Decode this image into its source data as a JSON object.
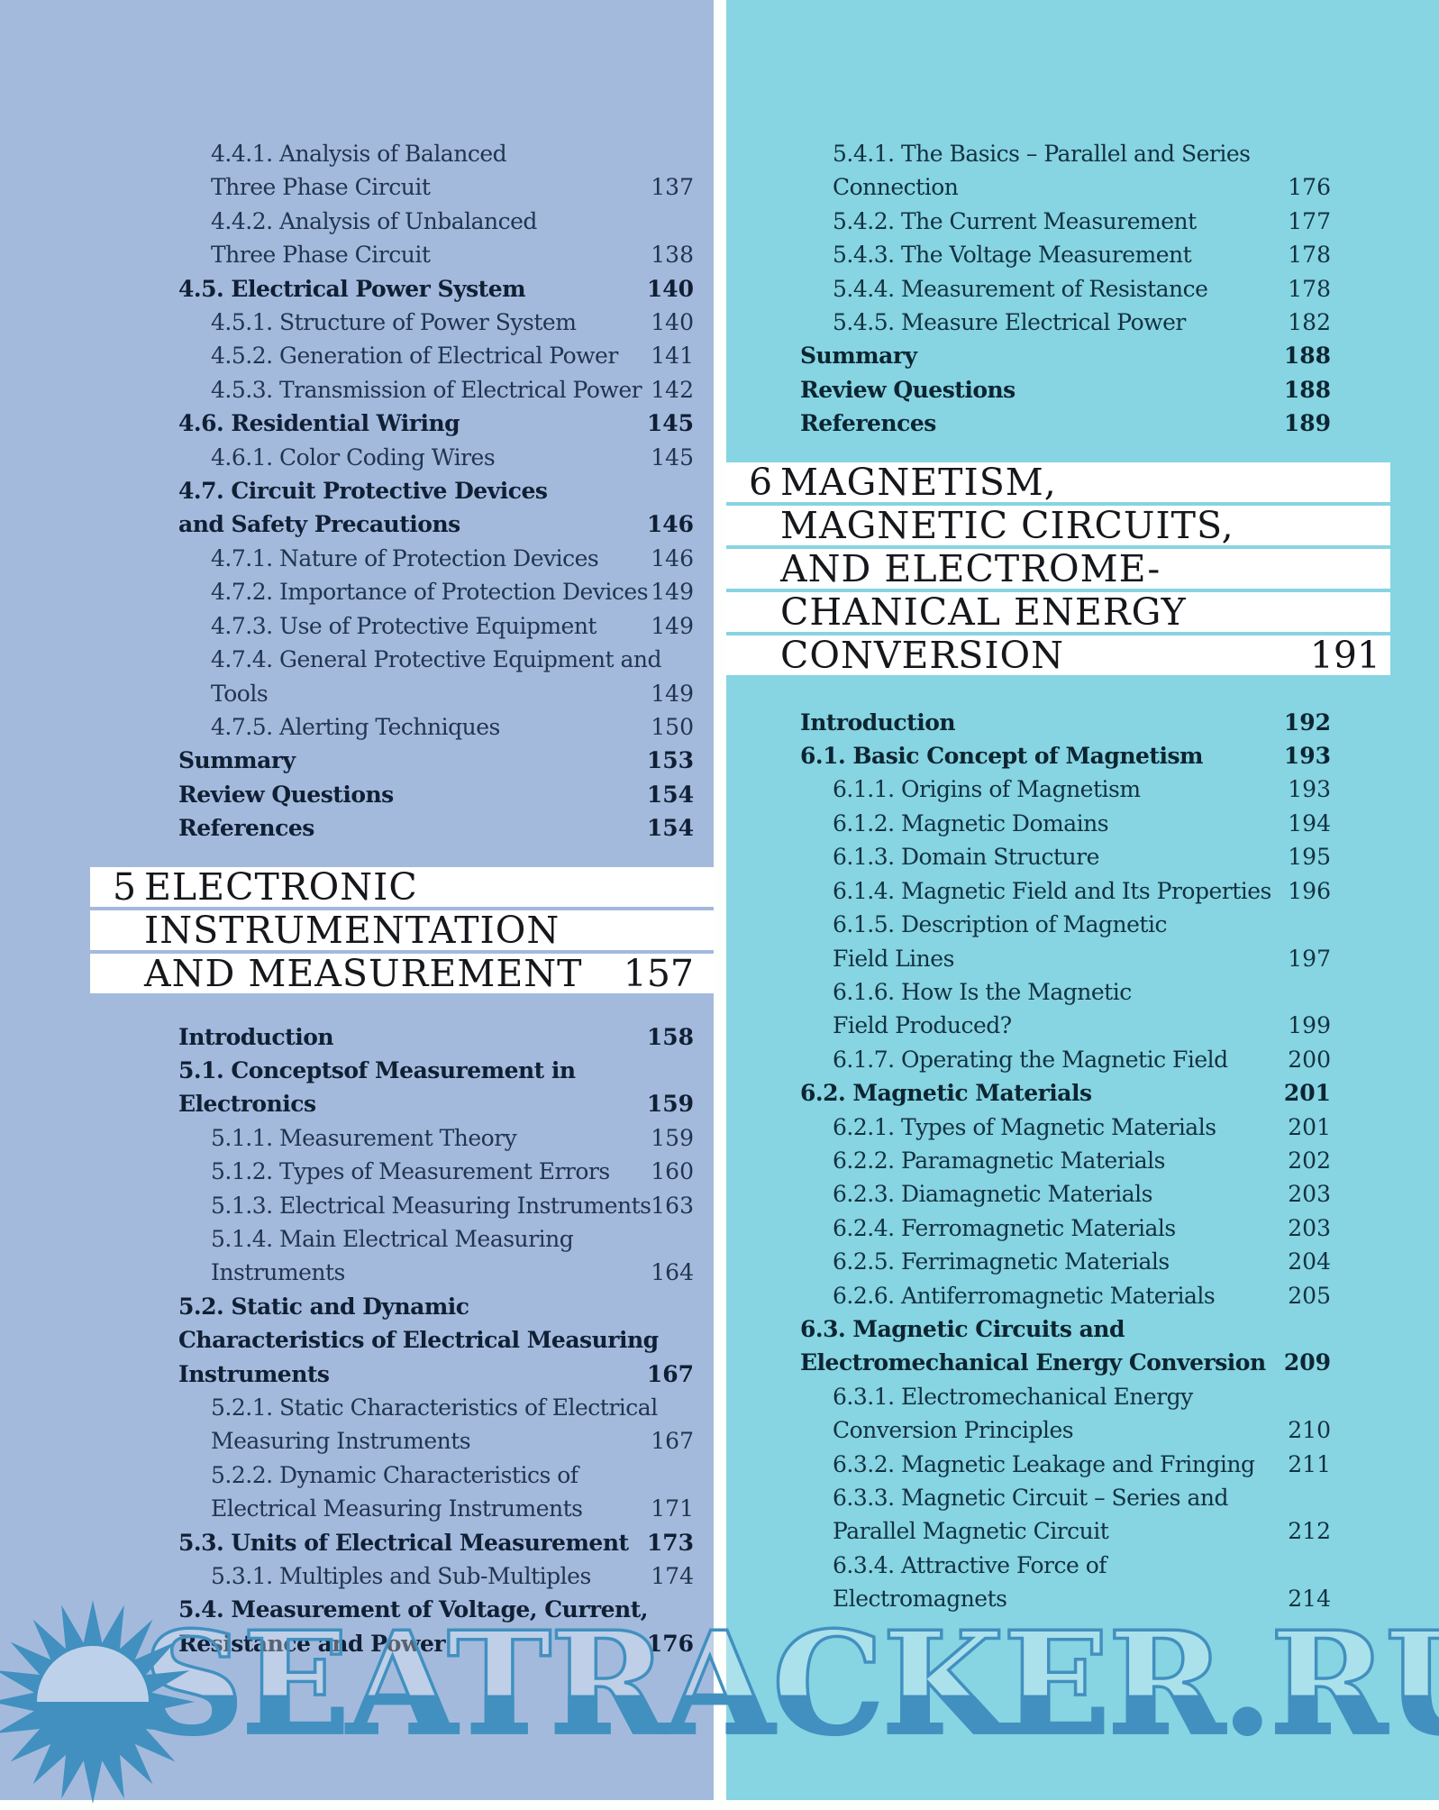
{
  "watermark": {
    "text": "SEATRACKER.RU"
  },
  "colors": {
    "left_background": "#a3badd",
    "right_background": "#87d4e2",
    "chapter_bar": "#ffffff",
    "body_text": "#22344e",
    "watermark_blue": "#4190c0",
    "sun_light": "#bdd2ea"
  },
  "columns": [
    {
      "side": "left",
      "blocks": [
        {
          "type": "entries",
          "items": [
            {
              "lines": [
                "4.4.1. Analysis of Balanced",
                "Three Phase Circuit"
              ],
              "page": "137",
              "level": 2,
              "bold": false
            },
            {
              "lines": [
                "4.4.2. Analysis of Unbalanced",
                "Three Phase Circuit"
              ],
              "page": "138",
              "level": 2,
              "bold": false
            },
            {
              "lines": [
                "4.5. Electrical Power System"
              ],
              "page": "140",
              "level": 1,
              "bold": true
            },
            {
              "lines": [
                "4.5.1. Structure of Power System"
              ],
              "page": "140",
              "level": 2,
              "bold": false
            },
            {
              "lines": [
                "4.5.2. Generation of Electrical Power"
              ],
              "page": "141",
              "level": 2,
              "bold": false
            },
            {
              "lines": [
                "4.5.3. Transmission of Electrical Power"
              ],
              "page": "142",
              "level": 2,
              "bold": false
            },
            {
              "lines": [
                "4.6. Residential Wiring"
              ],
              "page": "145",
              "level": 1,
              "bold": true
            },
            {
              "lines": [
                "4.6.1. Color Coding Wires"
              ],
              "page": "145",
              "level": 2,
              "bold": false
            },
            {
              "lines": [
                "4.7. Circuit Protective Devices",
                "and Safety Precautions"
              ],
              "page": "146",
              "level": 1,
              "bold": true
            },
            {
              "lines": [
                "4.7.1. Nature of Protection Devices"
              ],
              "page": "146",
              "level": 2,
              "bold": false
            },
            {
              "lines": [
                "4.7.2. Importance of Protection Devices"
              ],
              "page": "149",
              "level": 2,
              "bold": false
            },
            {
              "lines": [
                "4.7.3. Use of Protective Equipment"
              ],
              "page": "149",
              "level": 2,
              "bold": false
            },
            {
              "lines": [
                "4.7.4. General Protective Equipment and",
                "Tools"
              ],
              "page": "149",
              "level": 2,
              "bold": false
            },
            {
              "lines": [
                "4.7.5. Alerting Techniques"
              ],
              "page": "150",
              "level": 2,
              "bold": false
            },
            {
              "lines": [
                "Summary"
              ],
              "page": "153",
              "level": 1,
              "bold": true
            },
            {
              "lines": [
                "Review Questions"
              ],
              "page": "154",
              "level": 1,
              "bold": true
            },
            {
              "lines": [
                "References"
              ],
              "page": "154",
              "level": 1,
              "bold": true
            }
          ]
        },
        {
          "type": "chapter",
          "number": "5",
          "page": "157",
          "lines": [
            "ELECTRONIC",
            "INSTRUMENTATION",
            "AND MEASUREMENT"
          ]
        },
        {
          "type": "entries",
          "items": [
            {
              "lines": [
                "Introduction"
              ],
              "page": "158",
              "level": 1,
              "bold": true
            },
            {
              "lines": [
                "5.1. Conceptsof Measurement in",
                "Electronics"
              ],
              "page": "159",
              "level": 1,
              "bold": true
            },
            {
              "lines": [
                "5.1.1. Measurement Theory"
              ],
              "page": "159",
              "level": 2,
              "bold": false
            },
            {
              "lines": [
                "5.1.2. Types of Measurement Errors"
              ],
              "page": "160",
              "level": 2,
              "bold": false
            },
            {
              "lines": [
                "5.1.3. Electrical Measuring Instruments"
              ],
              "page": "163",
              "level": 2,
              "bold": false
            },
            {
              "lines": [
                "5.1.4. Main Electrical Measuring",
                "Instruments"
              ],
              "page": "164",
              "level": 2,
              "bold": false
            },
            {
              "lines": [
                "5.2. Static and Dynamic",
                "Characteristics of Electrical Measuring",
                "Instruments"
              ],
              "page": "167",
              "level": 1,
              "bold": true
            },
            {
              "lines": [
                "5.2.1. Static Characteristics of Electrical",
                "Measuring Instruments"
              ],
              "page": "167",
              "level": 2,
              "bold": false
            },
            {
              "lines": [
                "5.2.2. Dynamic Characteristics of",
                "Electrical Measuring Instruments"
              ],
              "page": "171",
              "level": 2,
              "bold": false
            },
            {
              "lines": [
                "5.3. Units of Electrical Measurement"
              ],
              "page": "173",
              "level": 1,
              "bold": true
            },
            {
              "lines": [
                "5.3.1. Multiples and Sub-Multiples"
              ],
              "page": "174",
              "level": 2,
              "bold": false
            },
            {
              "lines": [
                "5.4. Measurement of Voltage, Current,",
                "Resistance and Power"
              ],
              "page": "176",
              "level": 1,
              "bold": true
            }
          ]
        }
      ]
    },
    {
      "side": "right",
      "blocks": [
        {
          "type": "entries",
          "items": [
            {
              "lines": [
                "5.4.1. The Basics – Parallel and Series",
                "Connection"
              ],
              "page": "176",
              "level": 2,
              "bold": false
            },
            {
              "lines": [
                "5.4.2. The Current Measurement"
              ],
              "page": "177",
              "level": 2,
              "bold": false
            },
            {
              "lines": [
                "5.4.3. The Voltage Measurement"
              ],
              "page": "178",
              "level": 2,
              "bold": false
            },
            {
              "lines": [
                "5.4.4. Measurement of Resistance"
              ],
              "page": "178",
              "level": 2,
              "bold": false
            },
            {
              "lines": [
                "5.4.5. Measure Electrical Power"
              ],
              "page": "182",
              "level": 2,
              "bold": false
            },
            {
              "lines": [
                "Summary"
              ],
              "page": "188",
              "level": 1,
              "bold": true
            },
            {
              "lines": [
                "Review Questions"
              ],
              "page": "188",
              "level": 1,
              "bold": true
            },
            {
              "lines": [
                "References"
              ],
              "page": "189",
              "level": 1,
              "bold": true
            }
          ]
        },
        {
          "type": "chapter",
          "number": "6",
          "page": "191",
          "lines": [
            "MAGNETISM,",
            "MAGNETIC CIRCUITS,",
            "AND ELECTROME-",
            "CHANICAL ENERGY",
            "CONVERSION"
          ]
        },
        {
          "type": "entries",
          "items": [
            {
              "lines": [
                "Introduction"
              ],
              "page": "192",
              "level": 1,
              "bold": true
            },
            {
              "lines": [
                "6.1. Basic Concept of Magnetism"
              ],
              "page": "193",
              "level": 1,
              "bold": true
            },
            {
              "lines": [
                "6.1.1. Origins of Magnetism"
              ],
              "page": "193",
              "level": 2,
              "bold": false
            },
            {
              "lines": [
                "6.1.2. Magnetic Domains"
              ],
              "page": "194",
              "level": 2,
              "bold": false
            },
            {
              "lines": [
                "6.1.3. Domain Structure"
              ],
              "page": "195",
              "level": 2,
              "bold": false
            },
            {
              "lines": [
                "6.1.4. Magnetic Field and Its Properties"
              ],
              "page": "196",
              "level": 2,
              "bold": false
            },
            {
              "lines": [
                "6.1.5. Description of Magnetic",
                "Field Lines"
              ],
              "page": "197",
              "level": 2,
              "bold": false
            },
            {
              "lines": [
                "6.1.6. How Is the Magnetic",
                "Field Produced?"
              ],
              "page": "199",
              "level": 2,
              "bold": false
            },
            {
              "lines": [
                "6.1.7. Operating the Magnetic Field"
              ],
              "page": "200",
              "level": 2,
              "bold": false
            },
            {
              "lines": [
                "6.2. Magnetic Materials"
              ],
              "page": "201",
              "level": 1,
              "bold": true
            },
            {
              "lines": [
                "6.2.1. Types of Magnetic Materials"
              ],
              "page": "201",
              "level": 2,
              "bold": false
            },
            {
              "lines": [
                "6.2.2. Paramagnetic Materials"
              ],
              "page": "202",
              "level": 2,
              "bold": false
            },
            {
              "lines": [
                "6.2.3. Diamagnetic Materials"
              ],
              "page": "203",
              "level": 2,
              "bold": false
            },
            {
              "lines": [
                "6.2.4. Ferromagnetic Materials"
              ],
              "page": "203",
              "level": 2,
              "bold": false
            },
            {
              "lines": [
                "6.2.5. Ferrimagnetic Materials"
              ],
              "page": "204",
              "level": 2,
              "bold": false
            },
            {
              "lines": [
                "6.2.6. Antiferromagnetic Materials"
              ],
              "page": "205",
              "level": 2,
              "bold": false
            },
            {
              "lines": [
                "6.3. Magnetic Circuits and",
                "Electromechanical Energy Conversion"
              ],
              "page": "209",
              "level": 1,
              "bold": true
            },
            {
              "lines": [
                "6.3.1. Electromechanical Energy",
                "Conversion Principles"
              ],
              "page": "210",
              "level": 2,
              "bold": false
            },
            {
              "lines": [
                "6.3.2. Magnetic Leakage and Fringing"
              ],
              "page": "211",
              "level": 2,
              "bold": false
            },
            {
              "lines": [
                "6.3.3. Magnetic Circuit – Series and",
                "Parallel Magnetic Circuit"
              ],
              "page": "212",
              "level": 2,
              "bold": false
            },
            {
              "lines": [
                "6.3.4. Attractive Force of",
                "Electromagnets"
              ],
              "page": "214",
              "level": 2,
              "bold": false
            }
          ]
        }
      ]
    }
  ]
}
